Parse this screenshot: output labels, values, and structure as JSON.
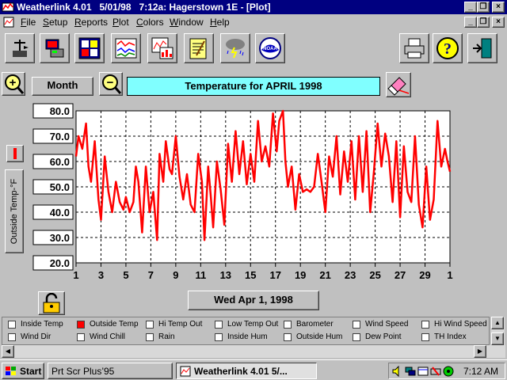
{
  "window": {
    "title": "Weatherlink 4.01   5/01/98   7:12a: Hagerstown 1E - [Plot]",
    "minimize_glyph": "_",
    "restore_glyph": "❐",
    "close_glyph": "×"
  },
  "menu": {
    "items": [
      {
        "accel": "F",
        "rest": "ile"
      },
      {
        "accel": "S",
        "rest": "etup"
      },
      {
        "accel": "R",
        "rest": "eports"
      },
      {
        "accel": "P",
        "rest": "lot"
      },
      {
        "accel": "C",
        "rest": "olors"
      },
      {
        "accel": "W",
        "rest": "indow"
      },
      {
        "accel": "H",
        "rest": "elp"
      }
    ]
  },
  "toolbar": {
    "icons": [
      "antenna-icon",
      "station-computer-icon",
      "summary-display-icon",
      "strip-chart-icon",
      "plot-chart-icon",
      "notepad-icon",
      "weather-rain-icon",
      "noaa-logo-icon",
      "printer-icon",
      "help-icon",
      "exit-door-icon"
    ],
    "noaa_label": "NOAA"
  },
  "controls": {
    "zoom_in_glyph": "+",
    "zoom_out_glyph": "−",
    "period_label": "Month",
    "date_label": "Wed Apr 1, 1998"
  },
  "chart_data": {
    "type": "line",
    "title": "Temperature for  APRIL 1998",
    "ylabel": "Outside Temp-°F",
    "ylim": [
      20,
      80
    ],
    "yticks": [
      "80.0",
      "70.0",
      "60.0",
      "50.0",
      "40.0",
      "30.0",
      "20.0"
    ],
    "xlim": [
      1,
      31
    ],
    "xticks": [
      "1",
      "3",
      "5",
      "7",
      "9",
      "11",
      "13",
      "15",
      "17",
      "19",
      "21",
      "23",
      "25",
      "27",
      "29",
      "1"
    ],
    "grid": true,
    "series": [
      {
        "color": "#ff0000",
        "x": [
          1.0,
          1.2,
          1.5,
          1.8,
          2.0,
          2.2,
          2.5,
          2.8,
          3.0,
          3.3,
          3.6,
          3.9,
          4.2,
          4.5,
          4.8,
          5.0,
          5.3,
          5.6,
          5.8,
          6.0,
          6.3,
          6.6,
          6.9,
          7.2,
          7.5,
          7.7,
          8.0,
          8.2,
          8.5,
          8.7,
          9.0,
          9.3,
          9.6,
          9.9,
          10.2,
          10.5,
          10.8,
          11.1,
          11.3,
          11.6,
          11.8,
          12.0,
          12.3,
          12.6,
          12.9,
          13.2,
          13.5,
          13.8,
          14.1,
          14.4,
          14.7,
          15.0,
          15.3,
          15.6,
          15.9,
          16.2,
          16.5,
          16.8,
          17.1,
          17.3,
          17.6,
          17.8,
          18.0,
          18.3,
          18.6,
          18.9,
          19.2,
          19.5,
          19.8,
          20.1,
          20.4,
          20.7,
          21.0,
          21.3,
          21.6,
          21.9,
          22.2,
          22.5,
          22.8,
          23.1,
          23.4,
          23.7,
          24.0,
          24.3,
          24.6,
          24.9,
          25.2,
          25.5,
          25.8,
          26.1,
          26.4,
          26.7,
          27.0,
          27.3,
          27.6,
          27.9,
          28.2,
          28.5,
          28.8,
          29.1,
          29.4,
          29.7,
          30.0,
          30.3,
          30.6,
          30.8,
          31.0
        ],
        "y": [
          62,
          70,
          65,
          75,
          58,
          52,
          68,
          45,
          37,
          62,
          48,
          40,
          52,
          44,
          41,
          46,
          40,
          44,
          58,
          52,
          32,
          58,
          40,
          48,
          29,
          63,
          52,
          68,
          57,
          55,
          70,
          54,
          45,
          55,
          43,
          40,
          63,
          52,
          29,
          58,
          47,
          34,
          60,
          49,
          35,
          67,
          52,
          72,
          55,
          68,
          51,
          63,
          52,
          76,
          60,
          66,
          58,
          79,
          64,
          76,
          80,
          60,
          50,
          58,
          41,
          55,
          48,
          49,
          48,
          50,
          63,
          52,
          40,
          62,
          54,
          70,
          47,
          64,
          52,
          68,
          45,
          70,
          48,
          72,
          40,
          56,
          75,
          58,
          71,
          62,
          44,
          68,
          38,
          66,
          48,
          44,
          70,
          43,
          34,
          58,
          37,
          45,
          76,
          58,
          65,
          60,
          56
        ]
      }
    ]
  },
  "series_panel": {
    "items": [
      {
        "label": "Inside Temp",
        "checked": false
      },
      {
        "label": "Outside Temp",
        "checked": true
      },
      {
        "label": "Hi Temp Out",
        "checked": false
      },
      {
        "label": "Low Temp Out",
        "checked": false
      },
      {
        "label": "Barometer",
        "checked": false
      },
      {
        "label": "Wind Speed",
        "checked": false
      },
      {
        "label": "Hi Wind Speed",
        "checked": false
      },
      {
        "label": "Wind Dir",
        "checked": false
      },
      {
        "label": "Wind Chill",
        "checked": false
      },
      {
        "label": "Rain",
        "checked": false
      },
      {
        "label": "Inside Hum",
        "checked": false
      },
      {
        "label": "Outside Hum",
        "checked": false
      },
      {
        "label": "Dew Point",
        "checked": false
      },
      {
        "label": "TH Index",
        "checked": false
      }
    ]
  },
  "taskbar": {
    "start_label": "Start",
    "tasks": [
      {
        "label": "Prt Scr Plus’95",
        "active": false
      },
      {
        "label": "Weatherlink 4.01    5/...",
        "active": true
      }
    ],
    "clock": "7:12 AM"
  }
}
